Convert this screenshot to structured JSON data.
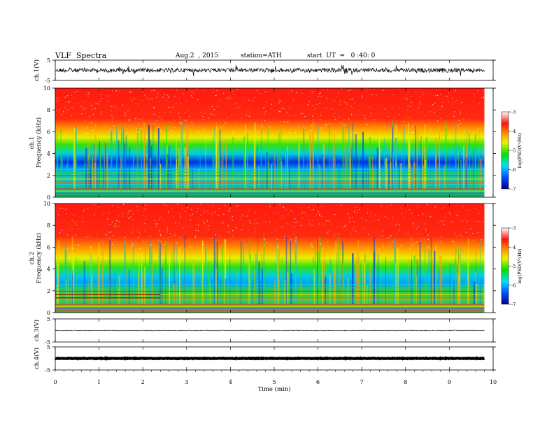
{
  "header": {
    "title": "VLF  Spectra",
    "date": "Aug.2  , 2015",
    "station": "station=ATH",
    "start": "start  UT  =   0 :40: 0"
  },
  "colors": {
    "low": "#00008b",
    "blue": "#0050ff",
    "cyan": "#00e0ff",
    "green": "#00e000",
    "yellow": "#f0f000",
    "orange": "#ff9000",
    "red": "#ff1010",
    "high": "#ffffff"
  },
  "chart_data": [
    {
      "type": "line",
      "ylabel": "ch.1(V)",
      "ylim": [
        -5,
        5
      ],
      "yticks": [
        "5",
        "-5"
      ],
      "trace": "noisy waveform near 0 V with spikes"
    },
    {
      "type": "heatmap",
      "ylabel": "ch.1\nFrequency  (kHz)",
      "ylabel_lines": [
        "ch.1",
        "Frequency  (kHz)"
      ],
      "ylim": [
        0,
        10
      ],
      "yticks": [
        "0",
        "2",
        "4",
        "6",
        "8",
        "10"
      ],
      "colorbar": {
        "label": "log(PSD(V²/Hz)",
        "ticks": [
          "-3",
          "-4",
          "-5",
          "-6",
          "-7"
        ],
        "range": [
          -7,
          -3
        ]
      }
    },
    {
      "type": "heatmap",
      "ylabel": "ch.2\nFrequency  (kHz)",
      "ylabel_lines": [
        "ch.2",
        "Frequency  (kHz)"
      ],
      "ylim": [
        0,
        10
      ],
      "yticks": [
        "0",
        "2",
        "4",
        "6",
        "8",
        "10"
      ],
      "colorbar": {
        "label": "log(PSD(V²/Hz)",
        "ticks": [
          "-3",
          "-4",
          "-5",
          "-6",
          "-7"
        ],
        "range": [
          -7,
          -3
        ]
      }
    },
    {
      "type": "line",
      "ylabel": "ch.3(V)",
      "ylim": [
        -5,
        5
      ],
      "yticks": [
        "5",
        "-5"
      ],
      "trace": "flat line near 0 V"
    },
    {
      "type": "line",
      "ylabel": "ch.4(V)",
      "ylim": [
        -5,
        5
      ],
      "yticks": [
        "5",
        "-5"
      ],
      "trace": "thick flat line near 0 V"
    }
  ],
  "xaxis": {
    "label": "Time  (min)",
    "xlim": [
      0,
      10
    ],
    "ticks": [
      "0",
      "1",
      "2",
      "3",
      "4",
      "5",
      "6",
      "7",
      "8",
      "9",
      "10"
    ],
    "data_end": 9.8
  }
}
